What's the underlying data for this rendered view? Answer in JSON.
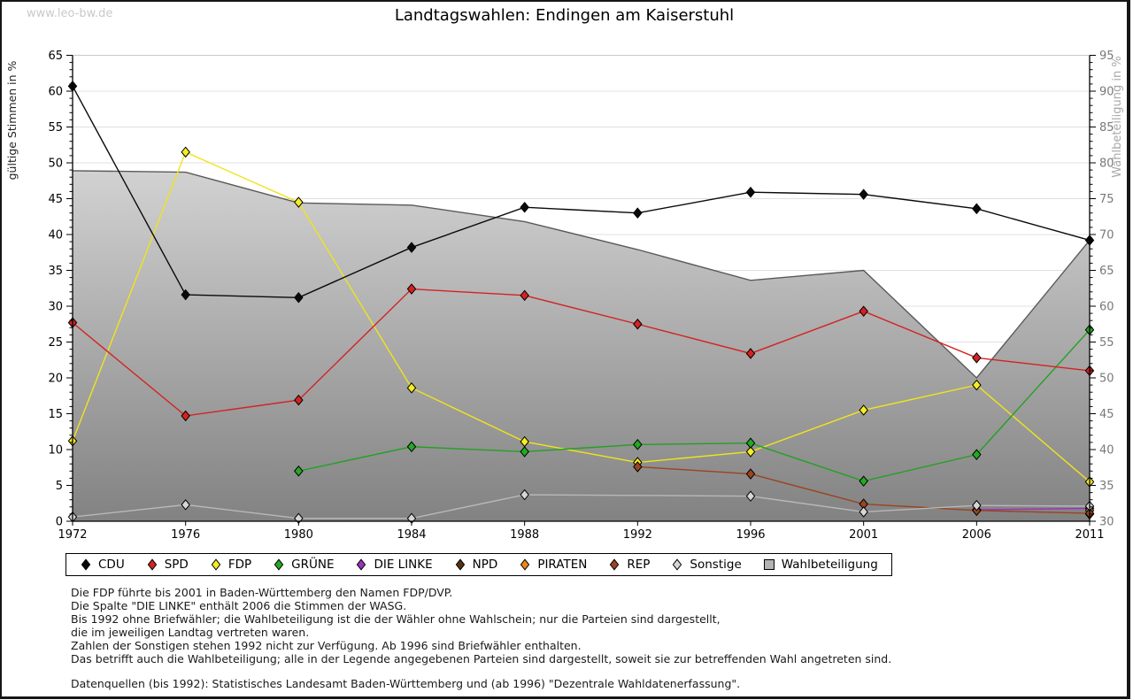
{
  "page": {
    "watermark": "www.leo-bw.de",
    "title": "Landtagswahlen: Endingen am Kaiserstuhl"
  },
  "chart_data": {
    "type": "line",
    "title": "Landtagswahlen: Endingen am Kaiserstuhl",
    "x_categories": [
      "1972",
      "1976",
      "1980",
      "1984",
      "1988",
      "1992",
      "1996",
      "2001",
      "2006",
      "2011"
    ],
    "y_axis_left": {
      "label": "gültige Stimmen in %",
      "min": 0,
      "max": 65,
      "tick_step": 5
    },
    "y_axis_right": {
      "label": "Wahlbeteiligung in %",
      "min": 30,
      "max": 95,
      "tick_step": 5
    },
    "grid": true,
    "legend_position": "bottom",
    "draw_order": [
      "Wahlbeteiligung",
      "NPD",
      "DIE LINKE",
      "PIRATEN",
      "FDP",
      "REP",
      "Sonstige",
      "GRÜNE",
      "SPD",
      "CDU"
    ],
    "series": [
      {
        "name": "CDU",
        "color": "#0a0a0a",
        "marker_fill": "#0a0a0a",
        "marker": "diamond",
        "axis": "left",
        "kind": "line",
        "values": [
          60.7,
          31.6,
          31.2,
          38.2,
          43.8,
          43.0,
          45.9,
          45.6,
          43.6,
          39.2
        ]
      },
      {
        "name": "SPD",
        "color": "#d42222",
        "marker_fill": "#d42222",
        "marker": "diamond",
        "axis": "left",
        "kind": "line",
        "values": [
          27.7,
          14.7,
          16.9,
          32.4,
          31.5,
          27.5,
          23.4,
          29.3,
          22.8,
          21.0
        ]
      },
      {
        "name": "FDP",
        "color": "#f0e41c",
        "marker_fill": "#f6ee22",
        "marker": "diamond",
        "axis": "left",
        "kind": "line",
        "values": [
          11.2,
          51.5,
          44.5,
          18.6,
          11.1,
          8.2,
          9.7,
          15.5,
          19.0,
          5.5
        ]
      },
      {
        "name": "GRÜNE",
        "color": "#22a022",
        "marker_fill": "#25a825",
        "marker": "diamond",
        "axis": "left",
        "kind": "line",
        "values": [
          null,
          null,
          7.0,
          10.4,
          9.7,
          10.7,
          10.9,
          5.6,
          9.3,
          26.7
        ]
      },
      {
        "name": "DIE LINKE",
        "color": "#9933bb",
        "marker_fill": "#9933bb",
        "marker": "diamond",
        "axis": "left",
        "kind": "line",
        "values": [
          null,
          null,
          null,
          null,
          null,
          null,
          null,
          null,
          1.6,
          1.8
        ]
      },
      {
        "name": "NPD",
        "color": "#553311",
        "marker_fill": "#553311",
        "marker": "diamond",
        "axis": "left",
        "kind": "line",
        "values": [
          null,
          null,
          null,
          null,
          null,
          null,
          null,
          null,
          null,
          1.0
        ]
      },
      {
        "name": "PIRATEN",
        "color": "#e8871e",
        "marker_fill": "#e8871e",
        "marker": "diamond",
        "axis": "left",
        "kind": "line",
        "values": [
          null,
          null,
          null,
          null,
          null,
          null,
          null,
          null,
          null,
          1.5
        ]
      },
      {
        "name": "REP",
        "color": "#9a4420",
        "marker_fill": "#9a4420",
        "marker": "diamond",
        "axis": "left",
        "kind": "line",
        "values": [
          null,
          null,
          null,
          null,
          null,
          7.6,
          6.6,
          2.4,
          1.5,
          1.1
        ]
      },
      {
        "name": "Sonstige",
        "color": "#b8b8b8",
        "marker_fill": "#d6d6d6",
        "marker": "diamond",
        "axis": "left",
        "kind": "line",
        "values": [
          0.6,
          2.3,
          0.4,
          0.4,
          3.7,
          null,
          3.5,
          1.3,
          2.2,
          2.1
        ]
      },
      {
        "name": "Wahlbeteiligung",
        "color": "#5a5a5a",
        "marker_fill": "#b0b0b0",
        "marker": "square",
        "axis": "right",
        "kind": "area",
        "values": [
          78.9,
          78.7,
          74.4,
          74.1,
          71.8,
          67.9,
          63.6,
          65.0,
          50.0,
          69.2
        ]
      }
    ],
    "area_style": {
      "gradient_top": "#ececec",
      "gradient_bottom": "#828282",
      "boundary": "#5a5a5a"
    },
    "colors": {
      "grid": "#e0e0e0",
      "axis": "#000000",
      "right_tick_label": "#787878",
      "right_axis_title": "#a8a8a8"
    }
  },
  "footnotes": {
    "lines": [
      "Die FDP führte bis 2001 in Baden-Württemberg den Namen FDP/DVP.",
      "Die Spalte \"DIE LINKE\" enthält 2006 die Stimmen der WASG.",
      "Bis 1992 ohne Briefwähler; die Wahlbeteiligung ist die der Wähler ohne Wahlschein; nur die Parteien sind dargestellt,",
      "die im jeweiligen Landtag vertreten waren.",
      "Zahlen der Sonstigen stehen 1992 nicht zur Verfügung. Ab 1996 sind Briefwähler enthalten.",
      "Das betrifft auch die Wahlbeteiligung; alle in der Legende angegebenen Parteien sind dargestellt, soweit sie zur betreffenden Wahl angetreten sind."
    ],
    "source": "Datenquellen (bis 1992): Statistisches Landesamt Baden-Württemberg und (ab 1996) \"Dezentrale Wahldatenerfassung\"."
  }
}
